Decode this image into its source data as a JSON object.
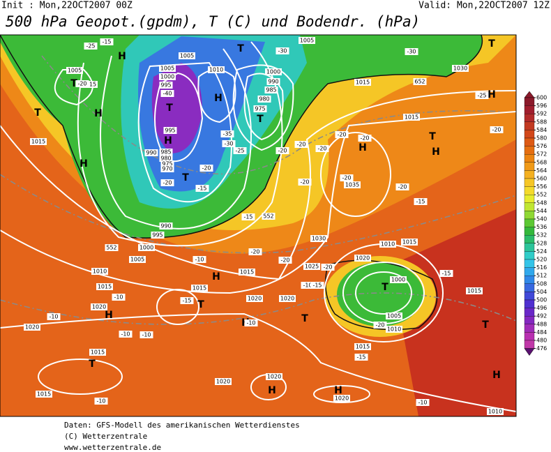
{
  "header": {
    "init": "Init : Mon,22OCT2007 00Z",
    "valid": "Valid: Mon,22OCT2007 12Z",
    "title": "500 hPa Geopot.(gpdm), T (C) und Bodendr. (hPa)"
  },
  "map": {
    "labels": [
      "-25",
      "-15",
      "-30",
      "-30",
      "1005",
      "1005",
      "1015",
      "T",
      "-20",
      "H",
      "H",
      "T",
      "H",
      "1015",
      "1005",
      "1005",
      "1010",
      "1000",
      "995",
      "-40",
      "T",
      "H",
      "T",
      "1000",
      "990",
      "985",
      "980",
      "975",
      "T",
      "995",
      "H",
      "990",
      "985",
      "980",
      "975",
      "970",
      "-20",
      "T",
      "-20",
      "-15",
      "-35",
      "-30",
      "-25",
      "-20",
      "-20",
      "-20",
      "-20",
      "-20",
      "H",
      "1030",
      "1015",
      "652",
      "T",
      "-25",
      "H",
      "1015",
      "T",
      "H",
      "-20",
      "-20",
      "1035",
      "-20",
      "-15",
      "-15",
      "-20",
      "1030",
      "-20",
      "1025",
      "-20",
      "-20",
      "1010",
      "1015",
      "1020",
      "T",
      "1000",
      "1005",
      "-20",
      "1010",
      "-15",
      "1015",
      "T",
      "1015",
      "-15",
      "H",
      "1010",
      "-10",
      "H",
      "1020",
      "H",
      "1020",
      "1020",
      "-10",
      "1015",
      "T",
      "1015",
      "-10",
      "1020",
      "1020",
      "H",
      "-10",
      "1015",
      "1010",
      "1005",
      "1000",
      "995",
      "990",
      "-10",
      "H",
      "1015",
      "T",
      "-15",
      "1020",
      "H",
      "-10",
      "T",
      "1020",
      "-10",
      "-15",
      "1015",
      "-10",
      "-10",
      "552",
      "552"
    ]
  },
  "colorbar": {
    "ticks": [
      600,
      596,
      592,
      588,
      584,
      580,
      576,
      572,
      568,
      564,
      560,
      556,
      552,
      548,
      544,
      540,
      536,
      532,
      528,
      524,
      520,
      516,
      512,
      508,
      504,
      500,
      496,
      492,
      488,
      484,
      480,
      476
    ],
    "colors": [
      "#8b1a2b",
      "#a01e2e",
      "#b22b2b",
      "#c23a22",
      "#d2481a",
      "#dd5a14",
      "#e56e10",
      "#ec8410",
      "#f09a18",
      "#f4b020",
      "#f6c626",
      "#f4da2c",
      "#e6ec2e",
      "#c0e632",
      "#8fd834",
      "#5cc834",
      "#34b83c",
      "#2cbc6a",
      "#2cc49a",
      "#30ccc8",
      "#34c4e8",
      "#30a8ec",
      "#3088e8",
      "#3868e0",
      "#4048d8",
      "#5030d0",
      "#6a28c8",
      "#8428c0",
      "#a02cb8",
      "#b830b0",
      "#c038a8",
      "#5a1070"
    ]
  },
  "footer": [
    "Daten: GFS-Modell des amerikanischen Wetterdienstes",
    "(C) Wetterzentrale",
    "www.wetterzentrale.de"
  ]
}
